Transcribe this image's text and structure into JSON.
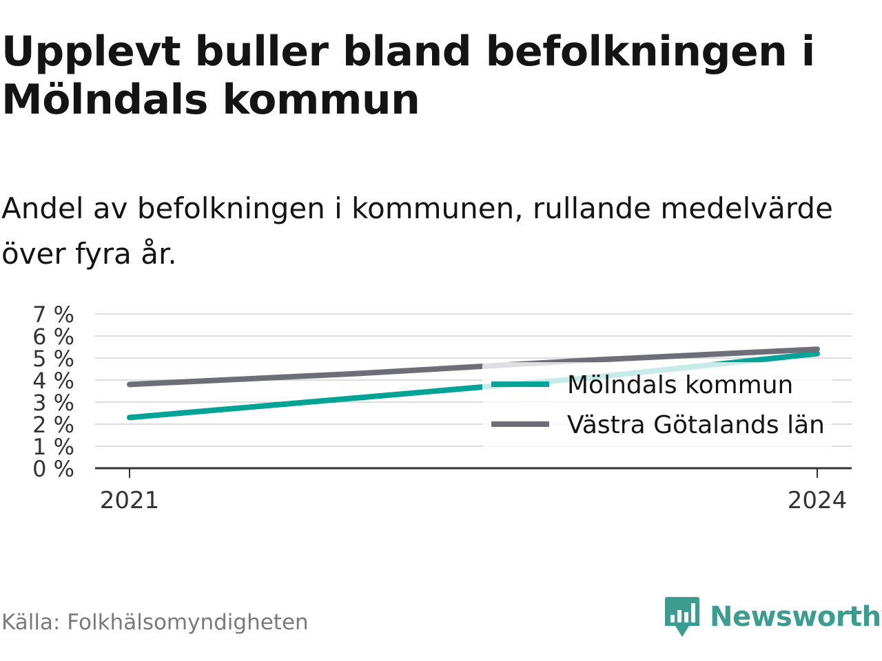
{
  "title": "Upplevt buller bland befolkningen i Mölndals kommun",
  "subtitle": "Andel av befolkningen i kommunen, rullande medelvärde över fyra år.",
  "source": "Källa: Folkhälsomyndigheten",
  "brand": {
    "name": "Newsworthy",
    "icon": "newsworthy-logo-icon",
    "color": "#3a9d8f"
  },
  "chart_data": {
    "type": "line",
    "x": [
      2021,
      2022,
      2023,
      2024
    ],
    "x_tick_labels": [
      "2021",
      "2024"
    ],
    "series": [
      {
        "name": "Mölndals kommun",
        "color": "#00a396",
        "values": [
          2.3,
          3.2,
          4.1,
          5.2
        ]
      },
      {
        "name": "Västra Götalands län",
        "color": "#6e6e78",
        "values": [
          3.8,
          4.3,
          4.9,
          5.4
        ]
      }
    ],
    "y_ticks": [
      0,
      1,
      2,
      3,
      4,
      5,
      6,
      7
    ],
    "y_tick_labels": [
      "0 %",
      "1 %",
      "2 %",
      "3 %",
      "4 %",
      "5 %",
      "6 %",
      "7 %"
    ],
    "ylim": [
      0,
      7
    ],
    "grid": true,
    "legend_position": "bottom-right"
  }
}
